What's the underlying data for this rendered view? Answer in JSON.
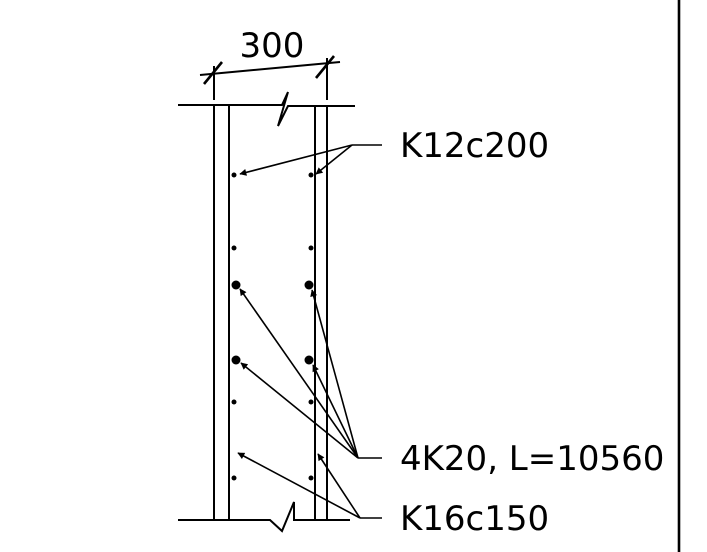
{
  "dimension": {
    "width_label": "300"
  },
  "labels": {
    "top_rebar": "K12c200",
    "main_bars": "4K20, L=10560",
    "bottom_rebar": "K16c150"
  }
}
